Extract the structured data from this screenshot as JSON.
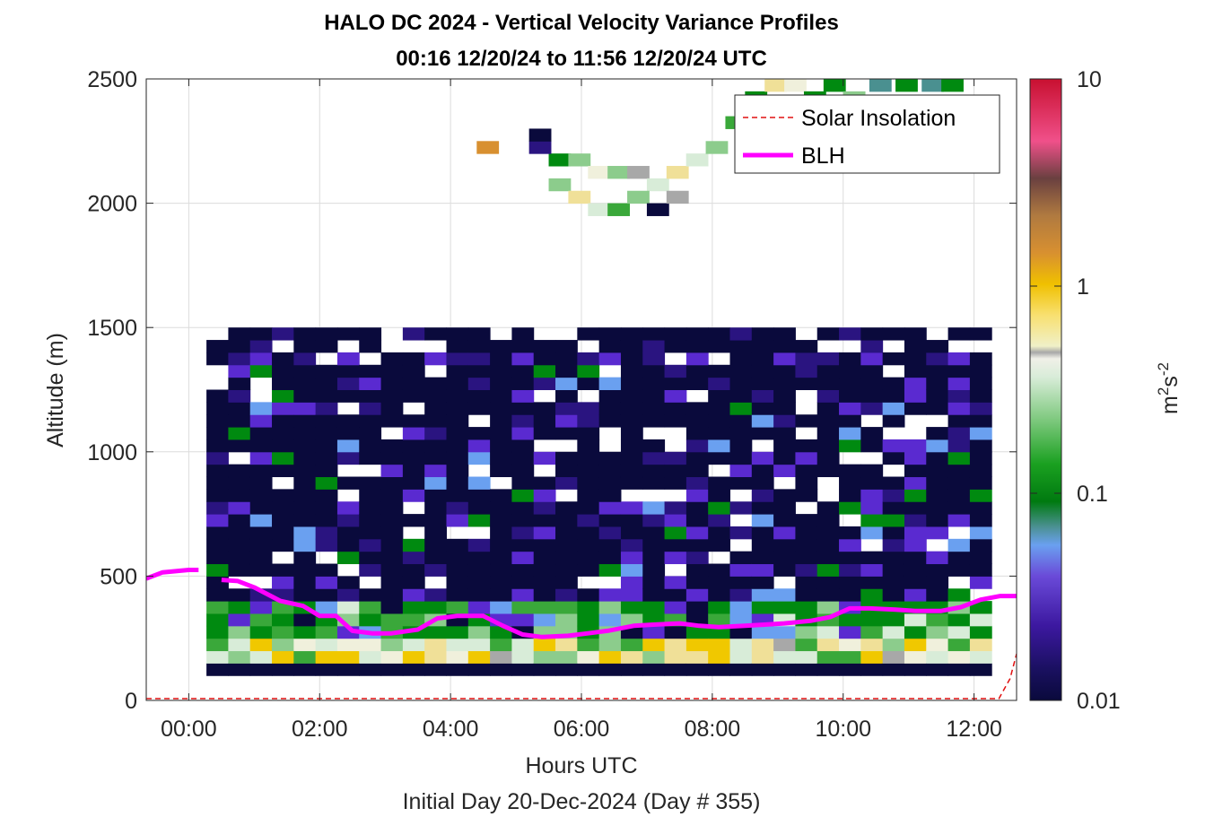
{
  "chart_data": {
    "type": "heatmap",
    "title": "HALO DC 2024 - Vertical Velocity Variance Profiles",
    "subtitle": "00:16 12/20/24 to 11:56 12/20/24  UTC",
    "xlabel": "Hours UTC",
    "xlabel2": "Initial Day 20-Dec-2024 (Day # 355)",
    "ylabel": "Altitude (m)",
    "xlim": [
      -0.65,
      12.65
    ],
    "ylim": [
      0,
      2500
    ],
    "x_ticks": [
      0,
      2,
      4,
      6,
      8,
      10,
      12
    ],
    "x_tick_labels": [
      "00:00",
      "02:00",
      "04:00",
      "06:00",
      "08:00",
      "10:00",
      "12:00"
    ],
    "y_ticks": [
      0,
      500,
      1000,
      1500,
      2000,
      2500
    ],
    "y_tick_labels": [
      "0",
      "500",
      "1000",
      "1500",
      "2000",
      "2500"
    ],
    "grid": true,
    "legend_position": "top-right",
    "legend": [
      {
        "label": "Solar Insolation",
        "color": "#e01010",
        "style": "dashed"
      },
      {
        "label": "BLH",
        "color": "#ff00ff",
        "style": "solid"
      }
    ],
    "colorbar": {
      "label": "m²s⁻²",
      "label_base": "m",
      "label_exp1": "2",
      "label_mid": "s",
      "label_exp2": "-2",
      "scale": "log",
      "range": [
        0.01,
        10
      ],
      "ticks": [
        0.01,
        0.1,
        1,
        10
      ],
      "tick_labels": [
        "0.01",
        "0.1",
        "1",
        "10"
      ]
    },
    "heatmap": {
      "x_start": 0.27,
      "x_step": 0.3333,
      "cols": 36,
      "y_start": 100,
      "y_step": 50,
      "rows": 29,
      "description_of_values": "log10 variance (m^2 s^-2) per column, rows from 100 m upward"
    },
    "blh": {
      "x": [
        -0.65,
        -0.4,
        0.0,
        0.15,
        0.5,
        0.75,
        1.0,
        1.4,
        1.75,
        2.0,
        2.25,
        2.5,
        2.8,
        3.1,
        3.5,
        3.8,
        4.1,
        4.5,
        4.8,
        5.1,
        5.4,
        5.8,
        6.1,
        6.4,
        6.8,
        7.1,
        7.5,
        7.8,
        8.1,
        8.5,
        8.8,
        9.1,
        9.5,
        9.8,
        10.1,
        10.4,
        10.8,
        11.1,
        11.5,
        11.8,
        12.1,
        12.4,
        12.65
      ],
      "y": [
        490,
        515,
        525,
        525,
        485,
        480,
        455,
        400,
        380,
        340,
        340,
        280,
        270,
        270,
        285,
        330,
        340,
        340,
        300,
        265,
        255,
        260,
        270,
        280,
        300,
        305,
        310,
        300,
        295,
        300,
        305,
        310,
        320,
        335,
        370,
        370,
        365,
        360,
        360,
        375,
        405,
        420,
        420
      ],
      "gap": [
        0.16,
        0.5
      ]
    },
    "solar": {
      "x": [
        -0.65,
        12.0,
        12.2,
        12.38,
        12.55,
        12.65
      ],
      "y": [
        0,
        0,
        0,
        0,
        80,
        180
      ]
    }
  }
}
